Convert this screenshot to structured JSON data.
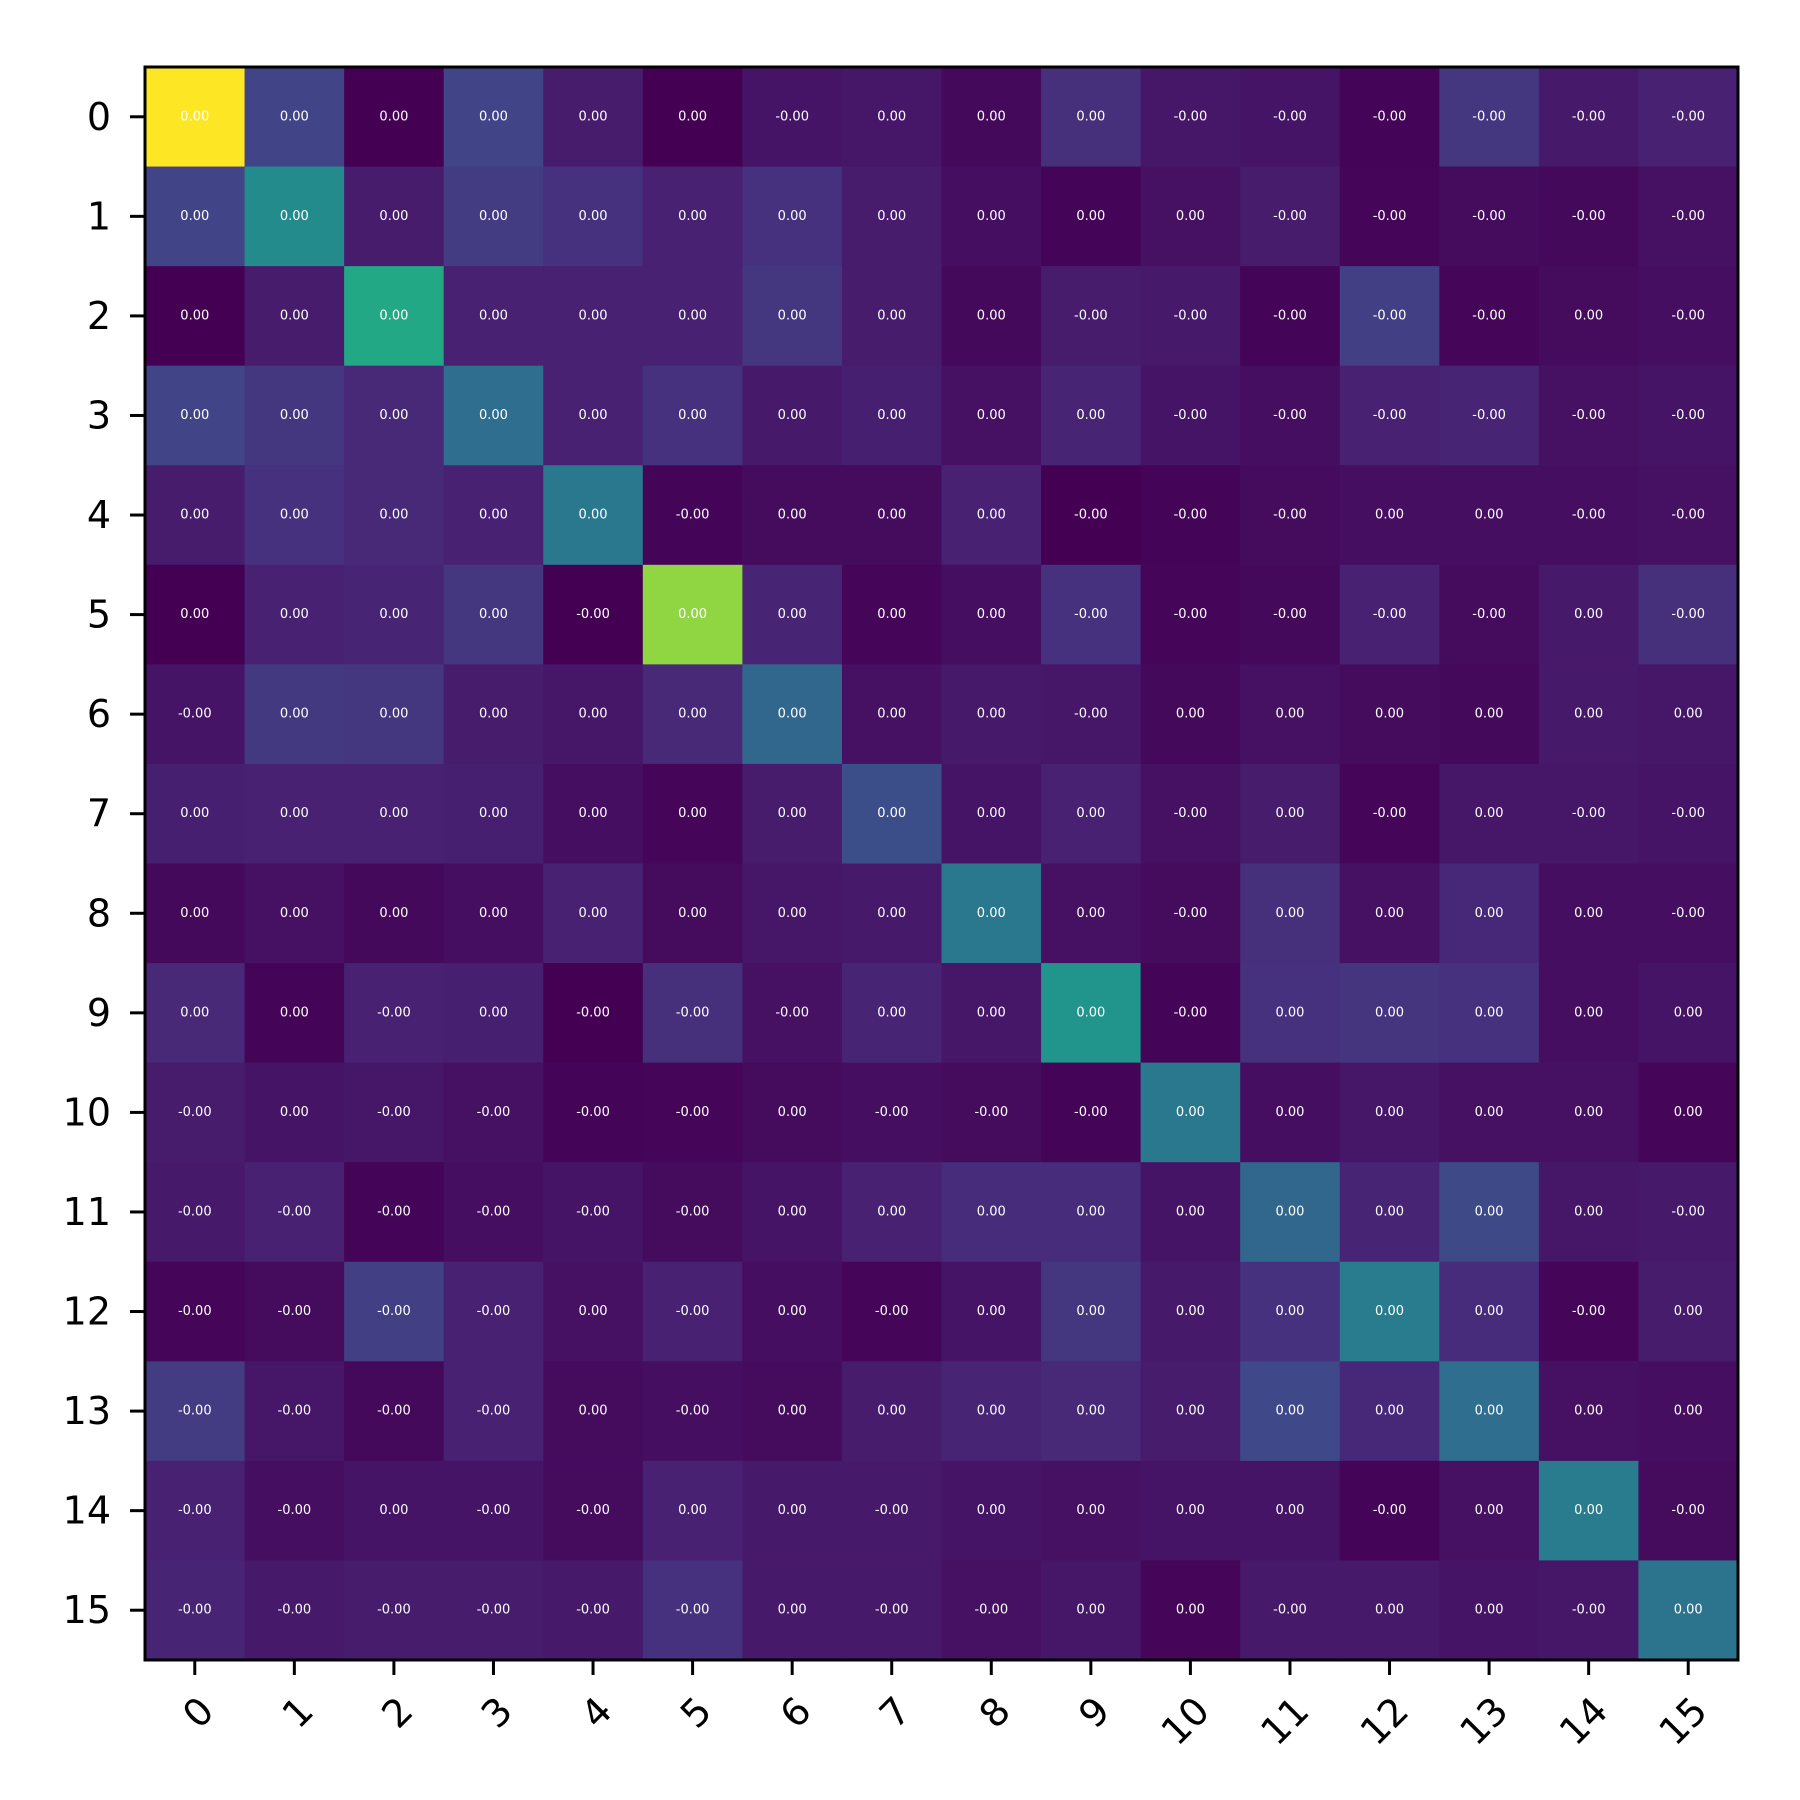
{
  "chart_data": {
    "type": "heatmap",
    "title": "",
    "xlabel": "",
    "ylabel": "",
    "colormap": "viridis",
    "x_tick_rotation_deg": 45,
    "categories_x": [
      "0",
      "1",
      "2",
      "3",
      "4",
      "5",
      "6",
      "7",
      "8",
      "9",
      "10",
      "11",
      "12",
      "13",
      "14",
      "15"
    ],
    "categories_y": [
      "0",
      "1",
      "2",
      "3",
      "4",
      "5",
      "6",
      "7",
      "8",
      "9",
      "10",
      "11",
      "12",
      "13",
      "14",
      "15"
    ],
    "intensity_range": [
      0,
      1
    ],
    "intensity": [
      [
        1.0,
        0.25,
        0.0,
        0.25,
        0.1,
        0.0,
        0.07,
        0.08,
        0.03,
        0.17,
        0.08,
        0.07,
        0.01,
        0.2,
        0.09,
        0.12
      ],
      [
        0.25,
        0.6,
        0.1,
        0.22,
        0.18,
        0.12,
        0.18,
        0.1,
        0.05,
        0.01,
        0.06,
        0.1,
        0.02,
        0.04,
        0.03,
        0.06
      ],
      [
        0.0,
        0.1,
        0.75,
        0.12,
        0.12,
        0.12,
        0.2,
        0.1,
        0.03,
        0.1,
        0.09,
        0.01,
        0.23,
        0.02,
        0.04,
        0.05
      ],
      [
        0.25,
        0.2,
        0.15,
        0.45,
        0.12,
        0.18,
        0.09,
        0.11,
        0.06,
        0.13,
        0.07,
        0.05,
        0.12,
        0.13,
        0.06,
        0.07
      ],
      [
        0.1,
        0.18,
        0.15,
        0.12,
        0.5,
        0.01,
        0.04,
        0.04,
        0.12,
        0.0,
        0.01,
        0.04,
        0.05,
        0.05,
        0.05,
        0.06
      ],
      [
        0.0,
        0.12,
        0.13,
        0.2,
        0.0,
        0.9,
        0.13,
        0.02,
        0.05,
        0.18,
        0.02,
        0.03,
        0.12,
        0.04,
        0.09,
        0.17
      ],
      [
        0.07,
        0.21,
        0.2,
        0.1,
        0.08,
        0.15,
        0.42,
        0.06,
        0.09,
        0.08,
        0.03,
        0.06,
        0.04,
        0.03,
        0.09,
        0.08
      ],
      [
        0.11,
        0.12,
        0.12,
        0.11,
        0.05,
        0.02,
        0.1,
        0.3,
        0.07,
        0.12,
        0.06,
        0.1,
        0.02,
        0.08,
        0.08,
        0.07
      ],
      [
        0.03,
        0.06,
        0.03,
        0.05,
        0.12,
        0.04,
        0.08,
        0.09,
        0.5,
        0.06,
        0.04,
        0.17,
        0.06,
        0.14,
        0.05,
        0.05
      ],
      [
        0.15,
        0.01,
        0.12,
        0.11,
        0.0,
        0.17,
        0.06,
        0.13,
        0.08,
        0.65,
        0.01,
        0.18,
        0.19,
        0.18,
        0.05,
        0.07
      ],
      [
        0.1,
        0.07,
        0.08,
        0.06,
        0.01,
        0.02,
        0.04,
        0.05,
        0.04,
        0.01,
        0.5,
        0.05,
        0.08,
        0.06,
        0.06,
        0.02
      ],
      [
        0.09,
        0.12,
        0.01,
        0.05,
        0.07,
        0.04,
        0.07,
        0.12,
        0.16,
        0.16,
        0.07,
        0.42,
        0.13,
        0.28,
        0.08,
        0.09
      ],
      [
        0.02,
        0.04,
        0.23,
        0.12,
        0.06,
        0.12,
        0.05,
        0.02,
        0.07,
        0.2,
        0.09,
        0.18,
        0.52,
        0.16,
        0.02,
        0.1
      ],
      [
        0.22,
        0.08,
        0.03,
        0.12,
        0.04,
        0.05,
        0.04,
        0.1,
        0.13,
        0.15,
        0.1,
        0.27,
        0.14,
        0.45,
        0.06,
        0.05
      ],
      [
        0.12,
        0.05,
        0.07,
        0.07,
        0.04,
        0.12,
        0.09,
        0.09,
        0.07,
        0.06,
        0.07,
        0.07,
        0.01,
        0.06,
        0.52,
        0.04
      ],
      [
        0.13,
        0.09,
        0.1,
        0.1,
        0.09,
        0.18,
        0.09,
        0.09,
        0.06,
        0.08,
        0.02,
        0.09,
        0.09,
        0.07,
        0.08,
        0.48
      ]
    ],
    "cell_labels": [
      [
        "0.00",
        "0.00",
        "0.00",
        "0.00",
        "0.00",
        "0.00",
        "-0.00",
        "0.00",
        "0.00",
        "0.00",
        "-0.00",
        "-0.00",
        "-0.00",
        "-0.00",
        "-0.00",
        "-0.00"
      ],
      [
        "0.00",
        "0.00",
        "0.00",
        "0.00",
        "0.00",
        "0.00",
        "0.00",
        "0.00",
        "0.00",
        "0.00",
        "0.00",
        "-0.00",
        "-0.00",
        "-0.00",
        "-0.00",
        "-0.00"
      ],
      [
        "0.00",
        "0.00",
        "0.00",
        "0.00",
        "0.00",
        "0.00",
        "0.00",
        "0.00",
        "0.00",
        "-0.00",
        "-0.00",
        "-0.00",
        "-0.00",
        "-0.00",
        "0.00",
        "-0.00"
      ],
      [
        "0.00",
        "0.00",
        "0.00",
        "0.00",
        "0.00",
        "0.00",
        "0.00",
        "0.00",
        "0.00",
        "0.00",
        "-0.00",
        "-0.00",
        "-0.00",
        "-0.00",
        "-0.00",
        "-0.00"
      ],
      [
        "0.00",
        "0.00",
        "0.00",
        "0.00",
        "0.00",
        "-0.00",
        "0.00",
        "0.00",
        "0.00",
        "-0.00",
        "-0.00",
        "-0.00",
        "0.00",
        "0.00",
        "-0.00",
        "-0.00"
      ],
      [
        "0.00",
        "0.00",
        "0.00",
        "0.00",
        "-0.00",
        "0.00",
        "0.00",
        "0.00",
        "0.00",
        "-0.00",
        "-0.00",
        "-0.00",
        "-0.00",
        "-0.00",
        "0.00",
        "-0.00"
      ],
      [
        "-0.00",
        "0.00",
        "0.00",
        "0.00",
        "0.00",
        "0.00",
        "0.00",
        "0.00",
        "0.00",
        "-0.00",
        "0.00",
        "0.00",
        "0.00",
        "0.00",
        "0.00",
        "0.00"
      ],
      [
        "0.00",
        "0.00",
        "0.00",
        "0.00",
        "0.00",
        "0.00",
        "0.00",
        "0.00",
        "0.00",
        "0.00",
        "-0.00",
        "0.00",
        "-0.00",
        "0.00",
        "-0.00",
        "-0.00"
      ],
      [
        "0.00",
        "0.00",
        "0.00",
        "0.00",
        "0.00",
        "0.00",
        "0.00",
        "0.00",
        "0.00",
        "0.00",
        "-0.00",
        "0.00",
        "0.00",
        "0.00",
        "0.00",
        "-0.00"
      ],
      [
        "0.00",
        "0.00",
        "-0.00",
        "0.00",
        "-0.00",
        "-0.00",
        "-0.00",
        "0.00",
        "0.00",
        "0.00",
        "-0.00",
        "0.00",
        "0.00",
        "0.00",
        "0.00",
        "0.00"
      ],
      [
        "-0.00",
        "0.00",
        "-0.00",
        "-0.00",
        "-0.00",
        "-0.00",
        "0.00",
        "-0.00",
        "-0.00",
        "-0.00",
        "0.00",
        "0.00",
        "0.00",
        "0.00",
        "0.00",
        "0.00"
      ],
      [
        "-0.00",
        "-0.00",
        "-0.00",
        "-0.00",
        "-0.00",
        "-0.00",
        "0.00",
        "0.00",
        "0.00",
        "0.00",
        "0.00",
        "0.00",
        "0.00",
        "0.00",
        "0.00",
        "-0.00"
      ],
      [
        "-0.00",
        "-0.00",
        "-0.00",
        "-0.00",
        "0.00",
        "-0.00",
        "0.00",
        "-0.00",
        "0.00",
        "0.00",
        "0.00",
        "0.00",
        "0.00",
        "0.00",
        "-0.00",
        "0.00"
      ],
      [
        "-0.00",
        "-0.00",
        "-0.00",
        "-0.00",
        "0.00",
        "-0.00",
        "0.00",
        "0.00",
        "0.00",
        "0.00",
        "0.00",
        "0.00",
        "0.00",
        "0.00",
        "0.00",
        "0.00"
      ],
      [
        "-0.00",
        "-0.00",
        "0.00",
        "-0.00",
        "-0.00",
        "0.00",
        "0.00",
        "-0.00",
        "0.00",
        "0.00",
        "0.00",
        "0.00",
        "-0.00",
        "0.00",
        "0.00",
        "-0.00"
      ],
      [
        "-0.00",
        "-0.00",
        "-0.00",
        "-0.00",
        "-0.00",
        "-0.00",
        "0.00",
        "-0.00",
        "-0.00",
        "0.00",
        "0.00",
        "-0.00",
        "0.00",
        "0.00",
        "-0.00",
        "0.00"
      ]
    ]
  }
}
